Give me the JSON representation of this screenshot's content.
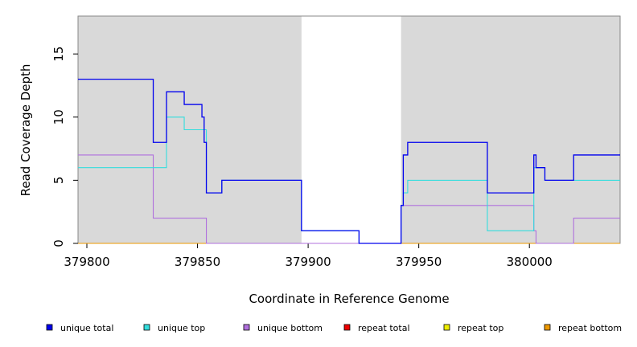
{
  "chart_data": {
    "type": "line",
    "step": true,
    "xlabel": "Coordinate in Reference Genome",
    "ylabel": "Read Coverage Depth",
    "xlim": [
      379796,
      380041
    ],
    "ylim": [
      0,
      18
    ],
    "x_ticks": [
      379800,
      379850,
      379900,
      379950,
      380000
    ],
    "x_tick_labels": [
      "379800",
      "379850",
      "379900",
      "379950",
      "380000"
    ],
    "y_ticks": [
      0,
      5,
      10,
      15
    ],
    "y_tick_labels": [
      "0",
      "5",
      "10",
      "15"
    ],
    "shaded_regions": [
      {
        "x0": 379796,
        "x1": 379897,
        "color": "#d9d9d9"
      },
      {
        "x0": 379942,
        "x1": 380041,
        "color": "#d9d9d9"
      }
    ],
    "legend_position": "bottom",
    "series": [
      {
        "name": "unique total",
        "color": "#0000ee",
        "x": [
          379796,
          379830,
          379836,
          379844,
          379852,
          379853,
          379854,
          379861,
          379897,
          379923,
          379942,
          379943,
          379945,
          379981,
          380002,
          380003,
          380007,
          380020,
          380041
        ],
        "y": [
          13,
          8,
          12,
          11,
          10,
          8,
          4,
          5,
          1,
          0,
          3,
          7,
          8,
          4,
          7,
          6,
          5,
          7,
          7
        ]
      },
      {
        "name": "unique top",
        "color": "#33dddd",
        "x": [
          379796,
          379836,
          379844,
          379854,
          379861,
          379897,
          379923,
          379942,
          379943,
          379945,
          379981,
          380002,
          380003,
          380007,
          380041
        ],
        "y": [
          6,
          10,
          9,
          4,
          5,
          1,
          0,
          3,
          4,
          5,
          1,
          6,
          6,
          5,
          5
        ]
      },
      {
        "name": "unique bottom",
        "color": "#b070dd",
        "x": [
          379796,
          379830,
          379854,
          379942,
          380002,
          380003,
          380020,
          380041
        ],
        "y": [
          7,
          2,
          0,
          3,
          1,
          0,
          2,
          2
        ]
      },
      {
        "name": "repeat total",
        "color": "#ee0000",
        "x": [
          379796,
          380041
        ],
        "y": [
          0,
          0
        ]
      },
      {
        "name": "repeat top",
        "color": "#eeee00",
        "x": [
          379796,
          380041
        ],
        "y": [
          0,
          0
        ]
      },
      {
        "name": "repeat bottom",
        "color": "#ee9900",
        "x": [
          379796,
          380041
        ],
        "y": [
          0,
          0
        ]
      }
    ]
  }
}
